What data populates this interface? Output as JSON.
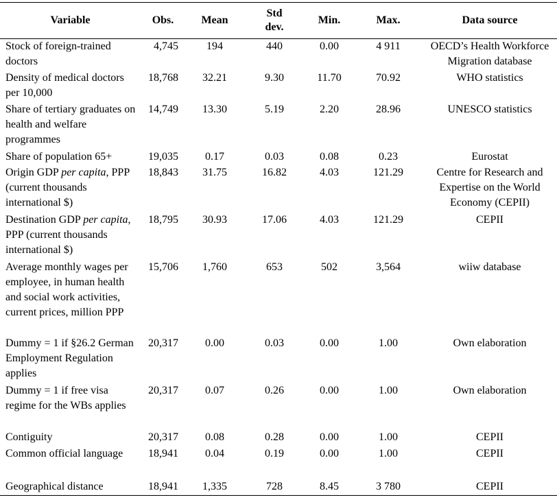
{
  "headers": {
    "variable": "Variable",
    "obs": "Obs.",
    "mean": "Mean",
    "std_line1": "Std",
    "std_line2": "dev.",
    "min": "Min.",
    "max": "Max.",
    "source": "Data source"
  },
  "rows": [
    {
      "variable": "Stock of foreign-trained doctors",
      "obs": "4,745",
      "mean": "194",
      "std": "440",
      "min": "0.00",
      "max": "4 911",
      "source": "OECD’s Health Workforce Migration database"
    },
    {
      "variable": "Density of medical doctors per 10,000",
      "obs": "18,768",
      "mean": "32.21",
      "std": "9.30",
      "min": "11.70",
      "max": "70.92",
      "source": "WHO statistics"
    },
    {
      "variable": "Share of tertiary graduates on health and welfare programmes",
      "obs": "14,749",
      "mean": "13.30",
      "std": "5.19",
      "min": "2.20",
      "max": "28.96",
      "source": "UNESCO statistics"
    },
    {
      "variable": "Share of population 65+",
      "obs": "19,035",
      "mean": "0.17",
      "std": "0.03",
      "min": "0.08",
      "max": "0.23",
      "source": "Eurostat"
    },
    {
      "variable_pre": "Origin GDP ",
      "variable_em": "per capita",
      "variable_post": ", PPP (current thousands international $)",
      "obs": "18,843",
      "mean": "31.75",
      "std": "16.82",
      "min": "4.03",
      "max": "121.29",
      "source": "Centre for Research and Expertise on the World Economy (CEPII)"
    },
    {
      "variable_pre": "Destination GDP ",
      "variable_em": "per capita",
      "variable_post": ", PPP (current thousands international $)",
      "obs": "18,795",
      "mean": "30.93",
      "std": "17.06",
      "min": "4.03",
      "max": "121.29",
      "source": "CEPII"
    },
    {
      "variable": "Average monthly wages per employee, in human health and social work activities, current prices, million PPP",
      "obs": "15,706",
      "mean": "1,760",
      "std": "653",
      "min": "502",
      "max": "3,564",
      "source": "wiiw database"
    },
    {
      "variable": "Dummy = 1 if §26.2 German Employment Regulation applies",
      "obs": "20,317",
      "mean": "0.00",
      "std": "0.03",
      "min": "0.00",
      "max": "1.00",
      "source": "Own elaboration"
    },
    {
      "variable": "Dummy = 1 if free visa regime for the WBs applies",
      "obs": "20,317",
      "mean": "0.07",
      "std": "0.26",
      "min": "0.00",
      "max": "1.00",
      "source": "Own elaboration"
    },
    {
      "variable": "Contiguity",
      "obs": "20,317",
      "mean": "0.08",
      "std": "0.28",
      "min": "0.00",
      "max": "1.00",
      "source": "CEPII"
    },
    {
      "variable": "Common official language",
      "obs": "18,941",
      "mean": "0.04",
      "std": "0.19",
      "min": "0.00",
      "max": "1.00",
      "source": "CEPII"
    },
    {
      "variable": "Geographical distance",
      "obs": "18,941",
      "mean": "1,335",
      "std": "728",
      "min": "8.45",
      "max": "3 780",
      "source": "CEPII"
    }
  ]
}
